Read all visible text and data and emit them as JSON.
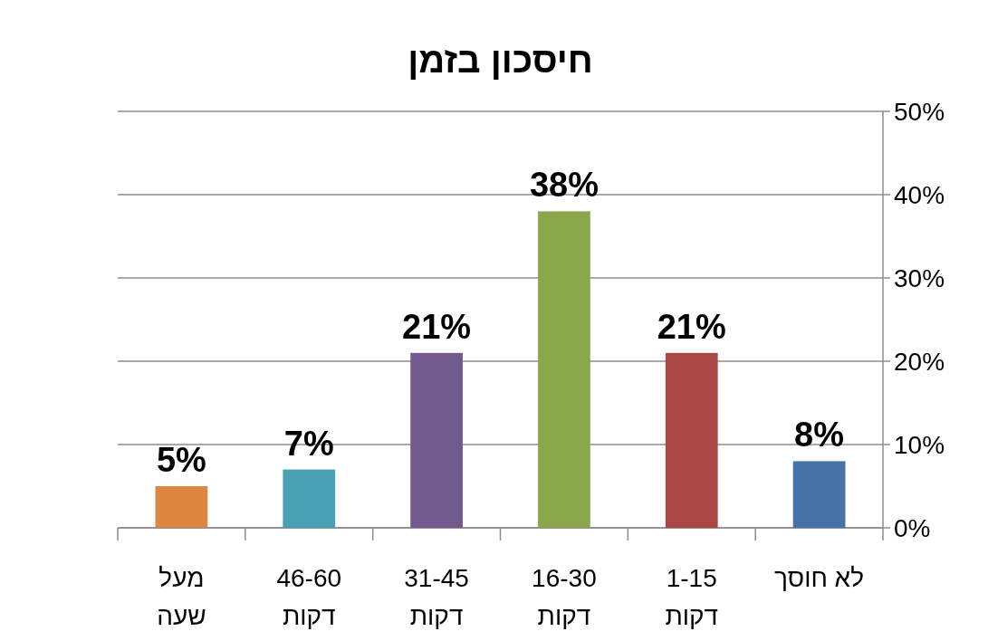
{
  "chart_data": {
    "type": "bar",
    "title": "חיסכון בזמן",
    "categories": [
      "מעל\nשעה",
      "46-60\nדקות",
      "31-45\nדקות",
      "16-30\nדקות",
      "1-15\nדקות",
      "לא חוסך"
    ],
    "values": [
      5,
      7,
      21,
      38,
      21,
      8
    ],
    "colors": [
      "#dd8641",
      "#4aa0b5",
      "#725a8f",
      "#8aa84b",
      "#a94745",
      "#4672a8"
    ],
    "value_labels": [
      "5%",
      "7%",
      "21%",
      "38%",
      "21%",
      "8%"
    ],
    "ylim": [
      0,
      50
    ],
    "yticks": [
      {
        "value": 0,
        "label": "0%"
      },
      {
        "value": 10,
        "label": "10%"
      },
      {
        "value": 20,
        "label": "20%"
      },
      {
        "value": 30,
        "label": "30%"
      },
      {
        "value": 40,
        "label": "40%"
      },
      {
        "value": 50,
        "label": "50%"
      }
    ],
    "grid": "y"
  }
}
